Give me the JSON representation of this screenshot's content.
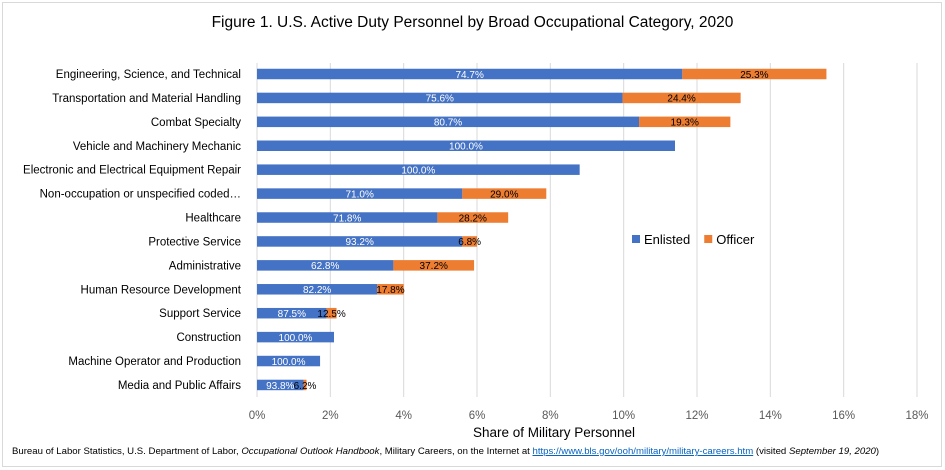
{
  "chart_data": {
    "type": "bar",
    "orientation": "horizontal",
    "stacked": true,
    "title": "Figure 1. U.S. Active Duty Personnel by Broad Occupational Category, 2020",
    "xlabel": "Share of Military Personnel",
    "ylabel": "",
    "xlim": [
      0,
      18
    ],
    "xticks": [
      0,
      2,
      4,
      6,
      8,
      10,
      12,
      14,
      16,
      18
    ],
    "tick_suffix": "%",
    "grid": "vertical",
    "legend_position": "right",
    "categories": [
      "Engineering, Science, and Technical",
      "Transportation and Material Handling",
      "Combat Specialty",
      "Vehicle and Machinery Mechanic",
      "Electronic and Electrical Equipment Repair",
      "Non-occupation or unspecified coded…",
      "Healthcare",
      "Protective Service",
      "Administrative",
      "Human Resource Development",
      "Support Service",
      "Construction",
      "Machine Operator and Production",
      "Media and Public Affairs"
    ],
    "series": [
      {
        "name": "Enlisted",
        "color": "#4472c4",
        "label_color": "#ffffff",
        "values": [
          11.6,
          9.97,
          10.42,
          11.4,
          8.8,
          5.6,
          4.92,
          5.6,
          3.72,
          3.28,
          1.9,
          2.1,
          1.72,
          1.27
        ],
        "labels": [
          "74.7%",
          "75.6%",
          "80.7%",
          "100.0%",
          "100.0%",
          "71.0%",
          "71.8%",
          "93.2%",
          "62.8%",
          "82.2%",
          "87.5%",
          "100.0%",
          "100.0%",
          "93.8%"
        ]
      },
      {
        "name": "Officer",
        "color": "#ed7d31",
        "label_color": "#000000",
        "values": [
          3.93,
          3.22,
          2.49,
          0,
          0,
          2.29,
          1.93,
          0.4,
          2.2,
          0.72,
          0.27,
          0,
          0,
          0.08
        ],
        "labels": [
          "25.3%",
          "24.4%",
          "19.3%",
          "",
          "",
          "29.0%",
          "28.2%",
          "6.8%",
          "37.2%",
          "17.8%",
          "12.5%",
          "",
          "",
          "6.2%"
        ]
      }
    ]
  },
  "source": {
    "prefix": "Bureau of Labor Statistics, U.S. Department of Labor, ",
    "publication": "Occupational Outlook Handbook",
    "middle": ", Military Careers, on the Internet at ",
    "url": "https://www.bls.gov/ooh/military/military-careers.htm",
    "visited_prefix": " (visited ",
    "visited_date": "September 19, 2020",
    "visited_suffix": ")"
  }
}
